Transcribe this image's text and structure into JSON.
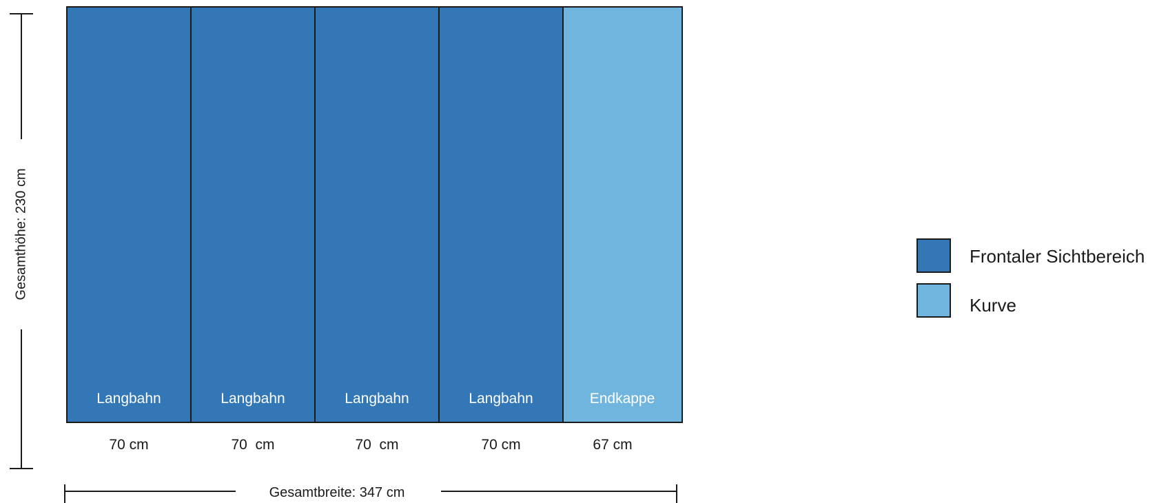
{
  "panels": [
    {
      "label": "Langbahn",
      "width_text": "70 cm",
      "category": "frontal"
    },
    {
      "label": "Langbahn",
      "width_text": "70  cm",
      "category": "frontal"
    },
    {
      "label": "Langbahn",
      "width_text": "70  cm",
      "category": "frontal"
    },
    {
      "label": "Langbahn",
      "width_text": "70 cm",
      "category": "frontal"
    },
    {
      "label": "Endkappe",
      "width_text": "67 cm",
      "category": "kurve"
    }
  ],
  "dimensions": {
    "height_label": "Gesamthöhe: 230 cm",
    "width_label": "Gesamtbreite: 347 cm"
  },
  "legend": [
    {
      "label": "Frontaler Sichtbereich",
      "color": "#3377b7"
    },
    {
      "label": "Kurve",
      "color": "#6fb5de"
    }
  ],
  "colors": {
    "frontal": "#3377b7",
    "kurve": "#6fb5de",
    "outline": "#1a1a1a"
  }
}
